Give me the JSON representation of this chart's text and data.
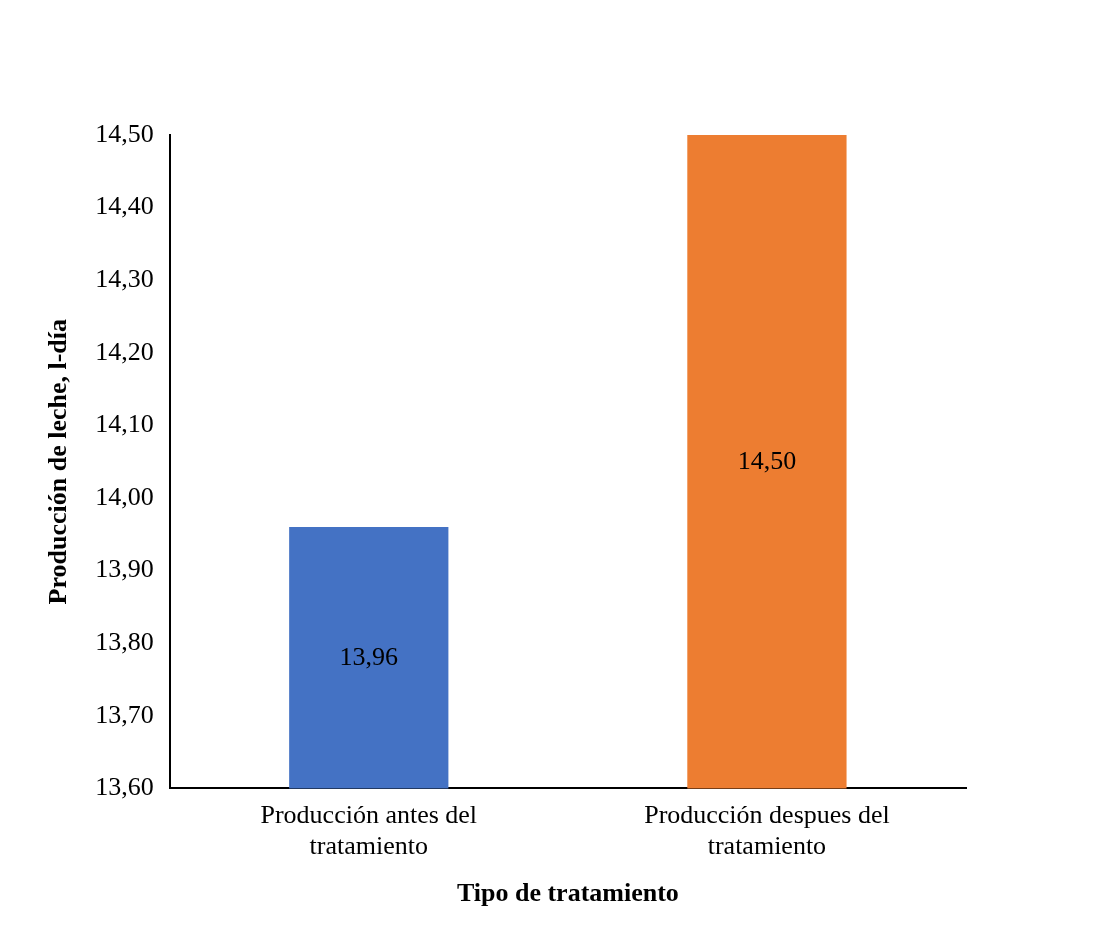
{
  "chart_data": {
    "type": "bar",
    "xlabel": "Tipo de tratamiento",
    "ylabel": "Producción de leche, l-día",
    "categories": [
      "Producción antes del tratamiento",
      "Producción despues del tratamiento"
    ],
    "values": [
      13.96,
      14.5
    ],
    "colors": [
      "#4472c4",
      "#ed7d31"
    ],
    "value_labels": [
      "13,96",
      "14,50"
    ],
    "ylim": [
      13.6,
      14.5
    ],
    "yticks": [
      {
        "value": 13.6,
        "label": "13,60"
      },
      {
        "value": 13.7,
        "label": "13,70"
      },
      {
        "value": 13.8,
        "label": "13,80"
      },
      {
        "value": 13.9,
        "label": "13,90"
      },
      {
        "value": 14.0,
        "label": "14,00"
      },
      {
        "value": 14.1,
        "label": "14,10"
      },
      {
        "value": 14.2,
        "label": "14,20"
      },
      {
        "value": 14.3,
        "label": "14,30"
      },
      {
        "value": 14.4,
        "label": "14,40"
      },
      {
        "value": 14.5,
        "label": "14,50"
      }
    ],
    "grid": false,
    "legend": false
  }
}
